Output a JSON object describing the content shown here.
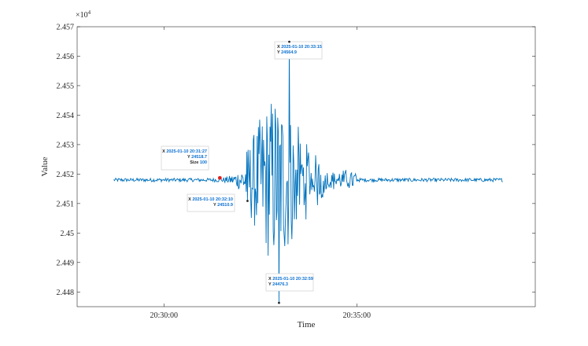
{
  "chart_data": {
    "type": "line",
    "xlabel": "Time",
    "ylabel": "Value",
    "y_exponent_label": "×10",
    "y_exponent_power": "4",
    "ylim": [
      2.4475,
      2.457
    ],
    "y_ticks": [
      2.448,
      2.449,
      2.45,
      2.451,
      2.452,
      2.453,
      2.454,
      2.455,
      2.456,
      2.457
    ],
    "y_tick_labels": [
      "2.448",
      "2.449",
      "2.45",
      "2.451",
      "2.452",
      "2.453",
      "2.454",
      "2.455",
      "2.456",
      "2.457"
    ],
    "xlim_seconds_of_day": [
      73665,
      74070
    ],
    "x_ticks": [
      73800,
      74100
    ],
    "x_tick_labels": [
      "20:30:00",
      "20:35:00"
    ],
    "grid": false,
    "series": [
      {
        "color": "#0072BD",
        "time_range": [
          "2025-01-10 20:28:42",
          "2025-01-10 20:38:47"
        ],
        "baseline": 24518,
        "noise_amplitude": 0.6,
        "peak_time": "2025-01-10 20:33:00"
      }
    ],
    "datatips": [
      {
        "x_label": "X",
        "x_value": "2025-01-10 20:31:27",
        "y_label": "Y",
        "y_value": "24518.7",
        "size_label": "Size",
        "size_value": "100",
        "time": 73887,
        "y": 24518.7
      },
      {
        "x_label": "X",
        "x_value": "2025-01-10 20:32:10",
        "y_label": "Y",
        "y_value": "24510.9",
        "time": 73930,
        "y": 24510.9
      },
      {
        "x_label": "X",
        "x_value": "2025-01-10 20:32:59",
        "y_label": "Y",
        "y_value": "24476.3",
        "time": 73979,
        "y": 24476.3
      },
      {
        "x_label": "X",
        "x_value": "2025-01-10 20:33:15",
        "y_label": "Y",
        "y_value": "24564.9",
        "time": 73995,
        "y": 24564.9
      }
    ],
    "marker": {
      "time": 73887,
      "y": 24518.7,
      "color": "#e02020"
    }
  }
}
